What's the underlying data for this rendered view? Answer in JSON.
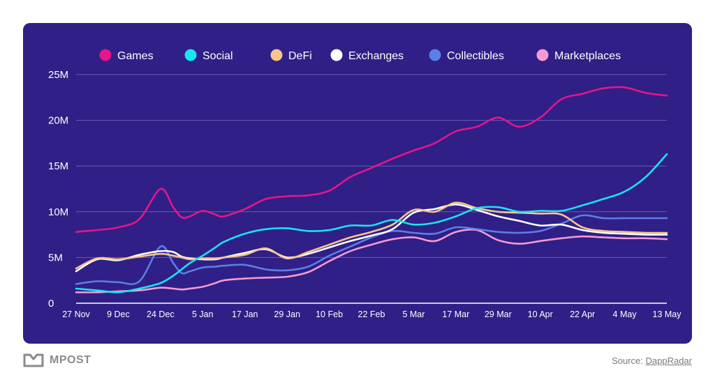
{
  "chart_data": {
    "type": "line",
    "ylim": [
      0,
      25000000
    ],
    "yticks": [
      {
        "value": 0,
        "label": "0"
      },
      {
        "value": 5000000,
        "label": "5M"
      },
      {
        "value": 10000000,
        "label": "10M"
      },
      {
        "value": 15000000,
        "label": "15M"
      },
      {
        "value": 20000000,
        "label": "20M"
      },
      {
        "value": 25000000,
        "label": "25M"
      }
    ],
    "xticks": [
      "27 Nov",
      "9 Dec",
      "24 Dec",
      "5 Jan",
      "17 Jan",
      "29 Jan",
      "10 Feb",
      "22 Feb",
      "5 Mar",
      "17 Mar",
      "29 Mar",
      "10 Apr",
      "22 Apr",
      "4 May",
      "13 May"
    ],
    "x": [
      0,
      0.5,
      1,
      1.5,
      2,
      2.3,
      2.5,
      2.7,
      3,
      3.3,
      3.5,
      4,
      4.5,
      5,
      5.5,
      6,
      6.5,
      7,
      7.5,
      8,
      8.5,
      9,
      9.5,
      10,
      10.5,
      11,
      11.5,
      12,
      12.5,
      13,
      13.5,
      14
    ],
    "grid": true,
    "legend_position": "top",
    "series": [
      {
        "name": "Games",
        "color": "#e6158a",
        "values": [
          7800000,
          8000000,
          8300000,
          9200000,
          12500000,
          10500000,
          9400000,
          9500000,
          10100000,
          9700000,
          9500000,
          10300000,
          11400000,
          11700000,
          11800000,
          12300000,
          13800000,
          14800000,
          15800000,
          16700000,
          17500000,
          18800000,
          19300000,
          20300000,
          19300000,
          20300000,
          22300000,
          22900000,
          23500000,
          23600000,
          23000000,
          22700000
        ]
      },
      {
        "name": "Social",
        "color": "#19e4f0",
        "values": [
          1600000,
          1400000,
          1200000,
          1600000,
          2200000,
          3000000,
          3700000,
          4400000,
          5200000,
          6100000,
          6700000,
          7600000,
          8100000,
          8200000,
          7900000,
          8000000,
          8500000,
          8500000,
          9100000,
          8600000,
          8800000,
          9500000,
          10400000,
          10500000,
          10000000,
          10100000,
          10100000,
          10700000,
          11400000,
          12200000,
          13800000,
          16300000
        ]
      },
      {
        "name": "DeFi",
        "color": "#f7c58c",
        "values": [
          3800000,
          4900000,
          4800000,
          5100000,
          5400000,
          5200000,
          5000000,
          4800000,
          4900000,
          4900000,
          5000000,
          5300000,
          6000000,
          4900000,
          5600000,
          6400000,
          7200000,
          7800000,
          8600000,
          10200000,
          10000000,
          11000000,
          10400000,
          10000000,
          9900000,
          9800000,
          9700000,
          8300000,
          7900000,
          7800000,
          7700000,
          7700000
        ]
      },
      {
        "name": "Exchanges",
        "color": "#ffffff",
        "values": [
          3500000,
          4800000,
          4700000,
          5300000,
          5700000,
          5600000,
          5100000,
          4900000,
          4800000,
          4800000,
          5000000,
          5500000,
          5900000,
          5000000,
          5400000,
          6100000,
          6800000,
          7400000,
          8100000,
          9900000,
          10300000,
          10800000,
          10200000,
          9500000,
          9000000,
          8500000,
          8600000,
          8000000,
          7700000,
          7600000,
          7500000,
          7500000
        ]
      },
      {
        "name": "Collectibles",
        "color": "#5b7ee6",
        "values": [
          2100000,
          2400000,
          2300000,
          2400000,
          6200000,
          4400000,
          3300000,
          3500000,
          3900000,
          4000000,
          4100000,
          4200000,
          3700000,
          3600000,
          4000000,
          5200000,
          6200000,
          7200000,
          7900000,
          7700000,
          7600000,
          8300000,
          8100000,
          7800000,
          7700000,
          7900000,
          8700000,
          9600000,
          9300000,
          9300000,
          9300000,
          9300000
        ]
      },
      {
        "name": "Marketplaces",
        "color": "#f59ad3",
        "values": [
          1200000,
          1200000,
          1300000,
          1400000,
          1700000,
          1600000,
          1500000,
          1600000,
          1800000,
          2200000,
          2500000,
          2700000,
          2800000,
          2900000,
          3400000,
          4600000,
          5700000,
          6400000,
          7000000,
          7200000,
          6800000,
          7800000,
          8000000,
          6900000,
          6500000,
          6800000,
          7100000,
          7300000,
          7200000,
          7100000,
          7100000,
          7000000
        ]
      }
    ]
  },
  "brand": {
    "name": "MPOST"
  },
  "source": {
    "prefix": "Source: ",
    "link": "DappRadar"
  }
}
